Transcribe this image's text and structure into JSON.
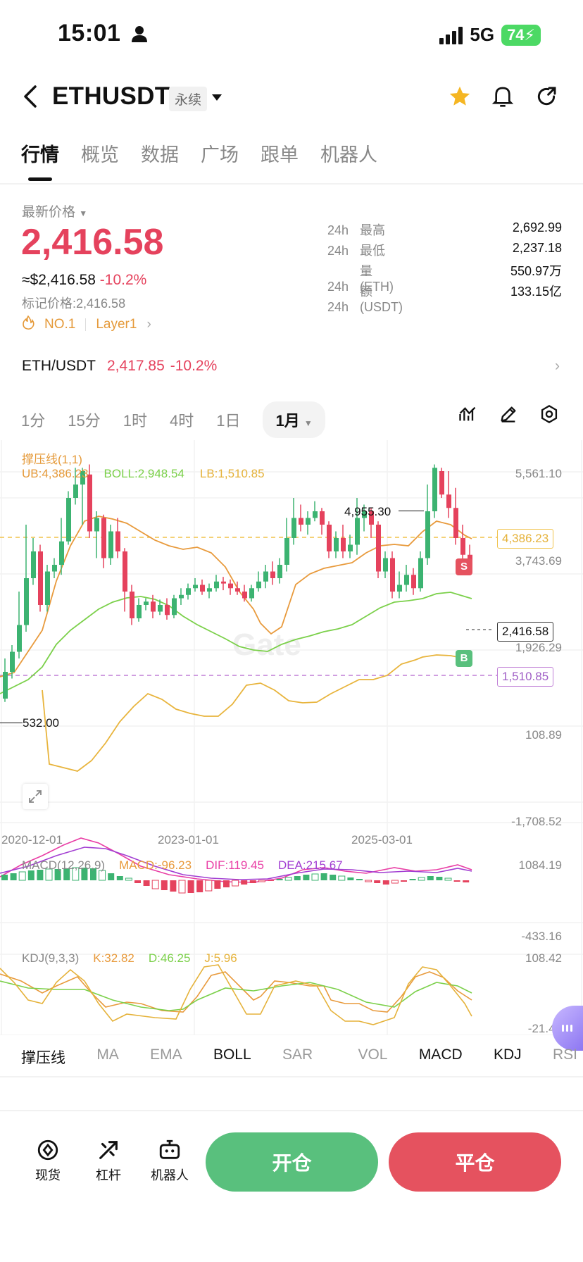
{
  "status_bar": {
    "time": "15:01",
    "network": "5G",
    "battery": "74"
  },
  "header": {
    "symbol": "ETHUSDT",
    "contract_type": "永续"
  },
  "tabs": [
    {
      "label": "行情",
      "active": true
    },
    {
      "label": "概览"
    },
    {
      "label": "数据"
    },
    {
      "label": "广场"
    },
    {
      "label": "跟单"
    },
    {
      "label": "机器人"
    }
  ],
  "price": {
    "latest_label": "最新价格",
    "last": "2,416.58",
    "usd_approx": "≈$2,416.58",
    "change": "-10.2%",
    "mark_label": "标记价格:",
    "mark_price": "2,416.58",
    "tag_rank": "NO.1",
    "tag_sector": "Layer1"
  },
  "stats_24h": [
    {
      "period": "24h",
      "label": "最高",
      "value": "2,692.99"
    },
    {
      "period": "24h",
      "label": "最低",
      "value": "2,237.18"
    },
    {
      "period": "24h",
      "label": "量 (ETH)",
      "value": "550.97万"
    },
    {
      "period": "24h",
      "label": "额 (USDT)",
      "value": "133.15亿"
    }
  ],
  "spot_pair": {
    "pair": "ETH/USDT",
    "price": "2,417.85",
    "change": "-10.2%"
  },
  "intervals": [
    "1分",
    "15分",
    "1时",
    "4时",
    "1日"
  ],
  "selected_interval": "1月",
  "main_chart": {
    "indicator_title": "撑压线(1,1)",
    "ub": "UB:4,386.23",
    "boll": "BOLL:2,948.54",
    "lb": "LB:1,510.85",
    "axis_values": [
      "5,561.10",
      "3,743.69",
      "1,926.29",
      "108.89",
      "-1,708.52"
    ],
    "ub_tag": "4,386.23",
    "lb_tag": "1,510.85",
    "current_tag": "2,416.58",
    "high_marker": "4,955.30",
    "low_marker": "532.00",
    "dates": [
      "2020-12-01",
      "2023-01-01",
      "2025-03-01"
    ],
    "sell_marker": "S",
    "buy_marker": "B"
  },
  "macd": {
    "title": "MACD(12,26,9)",
    "macd": "MACD:-96.23",
    "dif": "DIF:119.45",
    "dea": "DEA:215.67",
    "axis_top": "1084.19",
    "axis_bottom": "-433.16"
  },
  "kdj": {
    "title": "KDJ(9,3,3)",
    "k": "K:32.82",
    "d": "D:46.25",
    "j": "J:5.96",
    "axis_top": "108.42",
    "axis_bottom": "-21.41"
  },
  "indicator_bar": [
    {
      "label": "撑压线",
      "on": true
    },
    {
      "label": "MA"
    },
    {
      "label": "EMA"
    },
    {
      "label": "BOLL",
      "on": true
    },
    {
      "label": "SAR"
    },
    {
      "label": "VOL"
    },
    {
      "label": "MACD",
      "on": true
    },
    {
      "label": "KDJ",
      "on": true
    },
    {
      "label": "RSI"
    }
  ],
  "bottom_nav": {
    "spot": "现货",
    "leverage": "杠杆",
    "bot": "机器人",
    "open": "开仓",
    "close": "平仓"
  },
  "colors": {
    "up": "#3cb371",
    "down": "#e5425d",
    "accent_star": "#f5b623"
  }
}
